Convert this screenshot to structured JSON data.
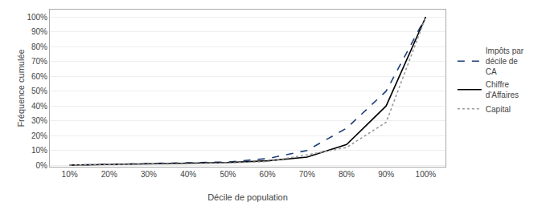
{
  "chart_data": {
    "type": "line",
    "xlabel": "Décile de population",
    "ylabel": "Fréquence cumulée",
    "x": [
      0.1,
      0.2,
      0.3,
      0.4,
      0.5,
      0.6,
      0.7,
      0.8,
      0.9,
      1.0
    ],
    "series": [
      {
        "name": "Impôts par\ndécile de\nCA",
        "color": "#1F3E7A",
        "line_style": "dashed",
        "values": [
          0.001,
          0.006,
          0.012,
          0.016,
          0.022,
          0.045,
          0.1,
          0.25,
          0.5,
          1.0
        ]
      },
      {
        "name": "Chiffre\nd'Affaires",
        "color": "#000000",
        "line_style": "solid",
        "values": [
          0.001,
          0.005,
          0.01,
          0.013,
          0.018,
          0.03,
          0.055,
          0.14,
          0.4,
          1.0
        ]
      },
      {
        "name": "Capital",
        "color": "#999999",
        "line_style": "dotted",
        "values": [
          0.001,
          0.003,
          0.005,
          0.01,
          0.015,
          0.025,
          0.07,
          0.12,
          0.29,
          1.0
        ]
      }
    ],
    "xlim": [
      0.05,
      1.05
    ],
    "ylim": [
      -0.01,
      1.05
    ],
    "xticks": [
      {
        "value": 0.1,
        "label": "10%"
      },
      {
        "value": 0.2,
        "label": "20%"
      },
      {
        "value": 0.3,
        "label": "30%"
      },
      {
        "value": 0.4,
        "label": "40%"
      },
      {
        "value": 0.5,
        "label": "50%"
      },
      {
        "value": 0.6,
        "label": "60%"
      },
      {
        "value": 0.7,
        "label": "70%"
      },
      {
        "value": 0.8,
        "label": "80%"
      },
      {
        "value": 0.9,
        "label": "90%"
      },
      {
        "value": 1.0,
        "label": "100%"
      }
    ],
    "yticks": [
      {
        "value": 0.0,
        "label": "0%"
      },
      {
        "value": 0.1,
        "label": "10%"
      },
      {
        "value": 0.2,
        "label": "20%"
      },
      {
        "value": 0.3,
        "label": "30%"
      },
      {
        "value": 0.4,
        "label": "40%"
      },
      {
        "value": 0.5,
        "label": "50%"
      },
      {
        "value": 0.6,
        "label": "60%"
      },
      {
        "value": 0.7,
        "label": "70%"
      },
      {
        "value": 0.8,
        "label": "80%"
      },
      {
        "value": 0.9,
        "label": "90%"
      },
      {
        "value": 1.0,
        "label": "100%"
      }
    ],
    "grid": "y",
    "legend": "right"
  }
}
